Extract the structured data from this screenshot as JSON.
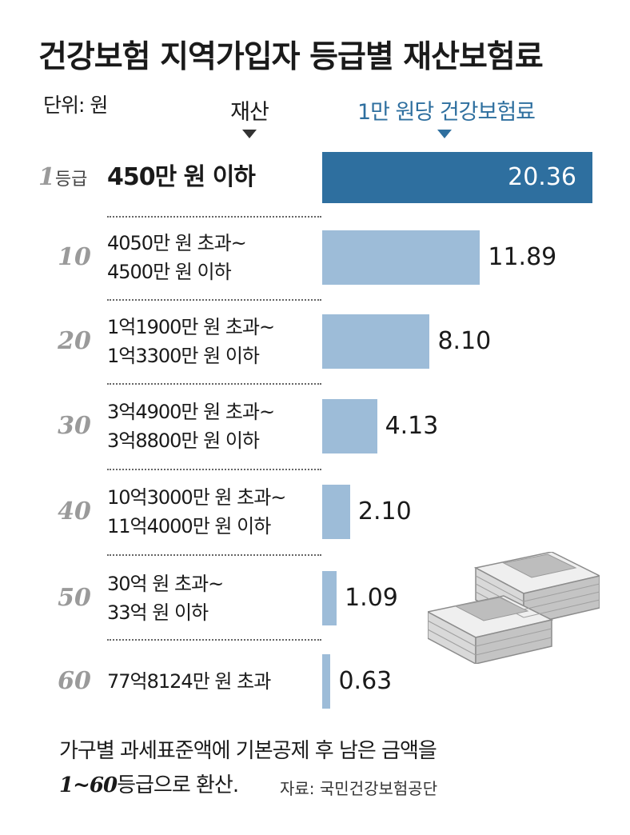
{
  "title": "건강보험 지역가입자 등급별 재산보험료",
  "unit": "단위: 원",
  "column_headers": {
    "asset": "재산",
    "insurance": "1만 원당 건강보험료"
  },
  "chart_data": {
    "type": "bar",
    "orientation": "horizontal",
    "title": "건강보험 지역가입자 등급별 재산보험료",
    "categories": [
      "1",
      "10",
      "20",
      "30",
      "40",
      "50",
      "60"
    ],
    "category_suffix": "등급",
    "ranges": [
      [
        "450만 원 이하"
      ],
      [
        "4050만 원 초과~",
        "4500만 원 이하"
      ],
      [
        "1억1900만 원 초과~",
        "1억3300만 원 이하"
      ],
      [
        "3억4900만 원 초과~",
        "3억8800만 원 이하"
      ],
      [
        "10억3000만 원 초과~",
        "11억4000만 원 이하"
      ],
      [
        "30억 원 초과~",
        "33억 원 이하"
      ],
      [
        "77억8124만 원 초과"
      ]
    ],
    "values": [
      20.36,
      11.89,
      8.1,
      4.13,
      2.1,
      1.09,
      0.63
    ],
    "labels": [
      "20.36",
      "11.89",
      "8.10",
      "4.13",
      "2.10",
      "1.09",
      "0.63"
    ],
    "xlim": [
      0,
      20.36
    ],
    "colors": {
      "highlight": "#2e6f9f",
      "bar": "#9dbcd8"
    }
  },
  "note": {
    "line1": "가구별 과세표준액에 기본공제 후 남은 금액을",
    "line2_lead": "1~60",
    "line2_rest": "등급으로 환산."
  },
  "source": "자료: 국민건강보험공단",
  "illustration": "money-stack-icon"
}
